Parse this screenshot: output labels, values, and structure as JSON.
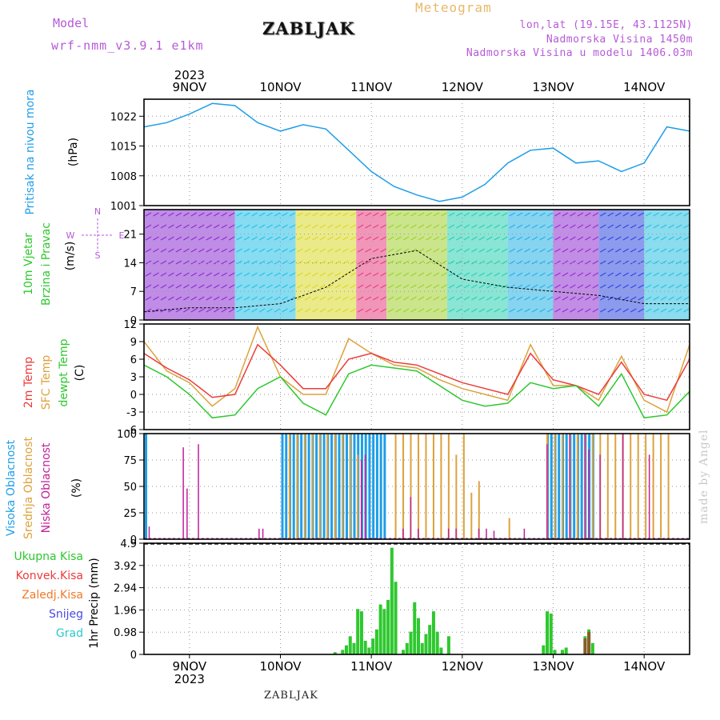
{
  "header": {
    "model_label": "Model",
    "model_version": "wrf-nmm_v3.9.1 e1km",
    "station": "ZABLJAK",
    "title": "Meteogram",
    "coords": "lon,lat (19.15E, 43.1125N)",
    "altitude": "Nadmorska Visina 1450m",
    "model_altitude": "Nadmorska Visina u modelu 1406.03m"
  },
  "footer": {
    "station": "ZABLJAK",
    "credit": "made by Angel"
  },
  "axis": {
    "year": "2023",
    "days": [
      "9NOV",
      "10NOV",
      "11NOV",
      "12NOV",
      "13NOV",
      "14NOV"
    ]
  },
  "colors": {
    "pressure": "#1e9ee8",
    "temp2m": "#ec3b3b",
    "sfc": "#dda23c",
    "dewpt": "#2ec82e",
    "high_cloud": "#1e9ee8",
    "mid_cloud": "#dda23c",
    "low_cloud": "#c0209a",
    "precip": "#2ec82e",
    "conv": "#ec3b3b",
    "frozen": "#f07a2a",
    "snow": "#4a4ae0",
    "grad": "#2ec8c8",
    "wind_label": "#2ec82e",
    "compass": "#b65ad8",
    "title_pressure": "#1e9ee8"
  },
  "chart_data": [
    {
      "type": "line",
      "panel": "pressure",
      "ylabel": [
        "Pritisak na nivou mora",
        "(hPa)"
      ],
      "yticks": [
        1001,
        1008,
        1015,
        1022
      ],
      "ylim": [
        1001,
        1026
      ],
      "x_hours": [
        0,
        6,
        12,
        18,
        24,
        30,
        36,
        42,
        48,
        54,
        60,
        66,
        72,
        78,
        84,
        90,
        96,
        102,
        108,
        114,
        120,
        126,
        132,
        138,
        144
      ],
      "series": [
        {
          "name": "",
          "values": [
            1019.5,
            1020.5,
            1022.5,
            1025,
            1024.5,
            1020.5,
            1018.5,
            1020,
            1019,
            1014,
            1009,
            1005.5,
            1003.5,
            1002,
            1003,
            1006,
            1011,
            1014,
            1014.5,
            1011,
            1011.5,
            1009,
            1011,
            1019.5,
            1018.5
          ]
        }
      ]
    },
    {
      "type": "line",
      "panel": "wind",
      "ylabel": [
        "10m Vjetar",
        "Brzina i Pravac",
        "(m/s)"
      ],
      "compass": [
        "N",
        "S",
        "W",
        "E"
      ],
      "yticks": [
        0,
        7,
        14,
        21
      ],
      "ylim": [
        0,
        27
      ],
      "x_hours": [
        0,
        12,
        24,
        36,
        48,
        60,
        72,
        84,
        96,
        108,
        120,
        132,
        144
      ],
      "series": [
        {
          "name": "",
          "values": [
            2,
            3,
            3,
            4,
            8,
            15,
            17,
            10,
            8,
            7,
            6,
            4,
            4
          ]
        }
      ],
      "bands": [
        {
          "from": 0,
          "to": 24,
          "color": "#8a2fd0"
        },
        {
          "from": 24,
          "to": 40,
          "color": "#25c0e6"
        },
        {
          "from": 40,
          "to": 56,
          "color": "#d8d82a"
        },
        {
          "from": 56,
          "to": 64,
          "color": "#e84080"
        },
        {
          "from": 64,
          "to": 80,
          "color": "#a0d030"
        },
        {
          "from": 80,
          "to": 96,
          "color": "#2ad0b0"
        },
        {
          "from": 96,
          "to": 108,
          "color": "#25b0e6"
        },
        {
          "from": 108,
          "to": 120,
          "color": "#9030d0"
        },
        {
          "from": 120,
          "to": 132,
          "color": "#3048e0"
        },
        {
          "from": 132,
          "to": 144,
          "color": "#2ac0e0"
        }
      ]
    },
    {
      "type": "line",
      "panel": "temperature",
      "ylabel": [
        "2m Temp",
        "SFC Temp",
        "dewpt Temp",
        "(C)"
      ],
      "yticks": [
        -6,
        -3,
        0,
        3,
        6,
        9,
        12
      ],
      "ylim": [
        -6,
        12
      ],
      "x_hours": [
        0,
        6,
        12,
        18,
        24,
        30,
        36,
        42,
        48,
        54,
        60,
        66,
        72,
        78,
        84,
        90,
        96,
        102,
        108,
        114,
        120,
        126,
        132,
        138,
        144
      ],
      "series": [
        {
          "name": "",
          "values": [
            7,
            4.5,
            2.5,
            -0.5,
            0,
            8.5,
            5,
            1,
            1,
            6,
            7,
            5.5,
            5,
            3.5,
            2,
            1,
            0,
            7,
            2.5,
            1.5,
            0,
            5.5,
            0,
            -1,
            6
          ]
        },
        {
          "name": "",
          "values": [
            9,
            4,
            2,
            -2,
            1,
            11.5,
            3,
            0,
            0,
            9.5,
            7,
            5,
            4.5,
            2.5,
            1,
            0,
            -1,
            8.5,
            1.5,
            1.5,
            -1,
            6.5,
            -1,
            -3,
            8.5
          ]
        },
        {
          "name": "",
          "values": [
            5,
            3,
            0,
            -4,
            -3.5,
            1,
            3,
            -1.5,
            -3.5,
            3.5,
            5,
            4.5,
            4,
            1.5,
            -1,
            -2,
            -1.5,
            2,
            1,
            1.5,
            -2,
            3.5,
            -4,
            -3.5,
            0.5
          ]
        }
      ]
    },
    {
      "type": "bar",
      "panel": "clouds",
      "ylabel": [
        "Visoka Oblacnost",
        "Srednja Oblacnost",
        "Niska Oblacnost",
        "(%)"
      ],
      "yticks": [
        0,
        25,
        50,
        75,
        100
      ],
      "ylim": [
        0,
        100
      ],
      "series": [
        {
          "name": "",
          "points": [
            [
              0,
              100
            ],
            [
              36,
              100
            ],
            [
              37,
              100
            ],
            [
              38,
              100
            ],
            [
              39,
              100
            ],
            [
              40,
              100
            ],
            [
              41,
              100
            ],
            [
              42,
              100
            ],
            [
              43,
              100
            ],
            [
              44,
              100
            ],
            [
              45,
              100
            ],
            [
              46,
              100
            ],
            [
              47,
              100
            ],
            [
              48,
              100
            ],
            [
              49,
              100
            ],
            [
              50,
              100
            ],
            [
              51,
              100
            ],
            [
              52,
              100
            ],
            [
              53,
              100
            ],
            [
              54,
              100
            ],
            [
              55,
              100
            ],
            [
              56,
              100
            ],
            [
              57,
              100
            ],
            [
              58,
              100
            ],
            [
              59,
              100
            ],
            [
              60,
              100
            ],
            [
              61,
              100
            ],
            [
              62,
              100
            ],
            [
              63,
              100
            ],
            [
              106,
              100
            ],
            [
              107,
              100
            ],
            [
              108,
              100
            ],
            [
              109,
              100
            ],
            [
              110,
              100
            ],
            [
              111,
              100
            ],
            [
              112,
              100
            ],
            [
              113,
              100
            ],
            [
              114,
              100
            ],
            [
              115,
              100
            ],
            [
              116,
              100
            ],
            [
              117,
              100
            ],
            [
              118,
              100
            ]
          ]
        },
        {
          "name": "",
          "points": [
            [
              38,
              100
            ],
            [
              40,
              100
            ],
            [
              42,
              100
            ],
            [
              44,
              100
            ],
            [
              46,
              100
            ],
            [
              48,
              100
            ],
            [
              50,
              100
            ],
            [
              52,
              100
            ],
            [
              54,
              100
            ],
            [
              56,
              80
            ],
            [
              66,
              100
            ],
            [
              68,
              100
            ],
            [
              70,
              100
            ],
            [
              72,
              100
            ],
            [
              74,
              100
            ],
            [
              76,
              100
            ],
            [
              78,
              100
            ],
            [
              80,
              100
            ],
            [
              82,
              80
            ],
            [
              84,
              100
            ],
            [
              86,
              44
            ],
            [
              88,
              55
            ],
            [
              106,
              100
            ],
            [
              108,
              100
            ],
            [
              110,
              100
            ],
            [
              112,
              100
            ],
            [
              114,
              100
            ],
            [
              116,
              100
            ],
            [
              118,
              100
            ],
            [
              120,
              100
            ],
            [
              122,
              100
            ],
            [
              124,
              100
            ],
            [
              126,
              100
            ],
            [
              128,
              100
            ],
            [
              130,
              100
            ],
            [
              132,
              100
            ],
            [
              134,
              100
            ],
            [
              136,
              100
            ],
            [
              138,
              100
            ],
            [
              96,
              20
            ]
          ]
        },
        {
          "name": "",
          "points": [
            [
              1,
              12
            ],
            [
              10,
              87
            ],
            [
              11,
              48
            ],
            [
              14,
              90
            ],
            [
              30,
              10
            ],
            [
              31,
              10
            ],
            [
              57,
              75
            ],
            [
              58,
              80
            ],
            [
              68,
              10
            ],
            [
              70,
              40
            ],
            [
              72,
              10
            ],
            [
              80,
              10
            ],
            [
              82,
              10
            ],
            [
              88,
              10
            ],
            [
              90,
              10
            ],
            [
              92,
              8
            ],
            [
              100,
              10
            ],
            [
              106,
              90
            ],
            [
              112,
              100
            ],
            [
              116,
              100
            ],
            [
              117,
              85
            ],
            [
              120,
              80
            ],
            [
              126,
              100
            ],
            [
              133,
              80
            ]
          ]
        }
      ]
    },
    {
      "type": "bar",
      "panel": "precip",
      "ylabel": [
        "1hr Precip (mm)"
      ],
      "legend": [
        "Ukupna Kisa",
        "Konvek.Kisa",
        "Zaledj.Kisa",
        "Snijeg",
        "Grad"
      ],
      "yticks": [
        0,
        0.98,
        1.96,
        2.94,
        3.92,
        4.9
      ],
      "ylim": [
        0,
        4.9
      ],
      "series": [
        {
          "name": "Ukupna Kisa",
          "points": [
            [
              50,
              0.1
            ],
            [
              52,
              0.2
            ],
            [
              53,
              0.4
            ],
            [
              54,
              0.8
            ],
            [
              55,
              0.5
            ],
            [
              56,
              2.0
            ],
            [
              57,
              1.9
            ],
            [
              58,
              0.6
            ],
            [
              59,
              0.3
            ],
            [
              60,
              0.7
            ],
            [
              61,
              1.1
            ],
            [
              62,
              2.2
            ],
            [
              63,
              2.0
            ],
            [
              64,
              2.4
            ],
            [
              65,
              4.7
            ],
            [
              66,
              3.2
            ],
            [
              68,
              0.2
            ],
            [
              69,
              0.5
            ],
            [
              70,
              1.0
            ],
            [
              71,
              2.3
            ],
            [
              72,
              1.6
            ],
            [
              73,
              0.5
            ],
            [
              74,
              0.9
            ],
            [
              75,
              1.3
            ],
            [
              76,
              1.9
            ],
            [
              77,
              1.0
            ],
            [
              78,
              0.3
            ],
            [
              80,
              0.8
            ],
            [
              105,
              0.4
            ],
            [
              106,
              1.9
            ],
            [
              107,
              1.8
            ],
            [
              108,
              0.2
            ],
            [
              110,
              0.2
            ],
            [
              111,
              0.3
            ],
            [
              116,
              0.8
            ],
            [
              117,
              1.1
            ],
            [
              118,
              0.5
            ]
          ]
        },
        {
          "name": "Konvek.Kisa",
          "points": [
            [
              116,
              0.7
            ],
            [
              117,
              1.0
            ]
          ]
        }
      ]
    }
  ]
}
